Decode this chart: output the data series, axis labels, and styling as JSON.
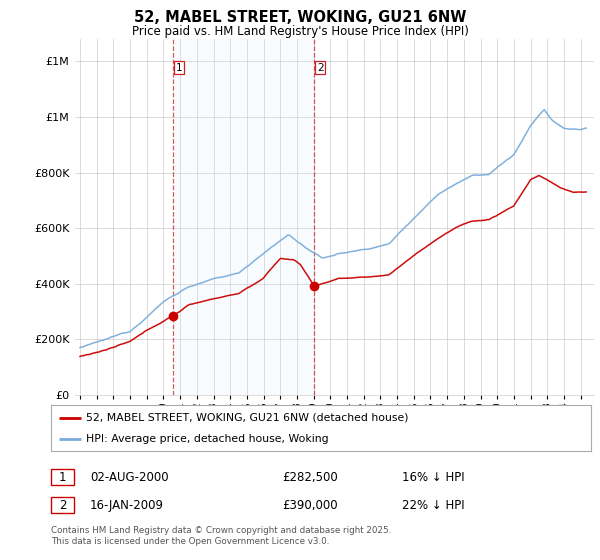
{
  "title": "52, MABEL STREET, WOKING, GU21 6NW",
  "subtitle": "Price paid vs. HM Land Registry's House Price Index (HPI)",
  "yticks": [
    0,
    200000,
    400000,
    600000,
    800000,
    1000000,
    1200000
  ],
  "sale1_date": "02-AUG-2000",
  "sale1_price": 282500,
  "sale1_year": 2000.58,
  "sale2_date": "16-JAN-2009",
  "sale2_price": 390000,
  "sale2_year": 2009.04,
  "sale1_pct": "16% ↓ HPI",
  "sale2_pct": "22% ↓ HPI",
  "legend_line1": "52, MABEL STREET, WOKING, GU21 6NW (detached house)",
  "legend_line2": "HPI: Average price, detached house, Woking",
  "footer": "Contains HM Land Registry data © Crown copyright and database right 2025.\nThis data is licensed under the Open Government Licence v3.0.",
  "line_color_red": "#cc0000",
  "line_color_blue": "#7aaddb",
  "shade_color": "#ddeeff",
  "background_color": "#ffffff",
  "grid_color": "#cccccc",
  "xmin": 1994.7,
  "xmax": 2025.8,
  "ymin": 0,
  "ymax": 1280000
}
